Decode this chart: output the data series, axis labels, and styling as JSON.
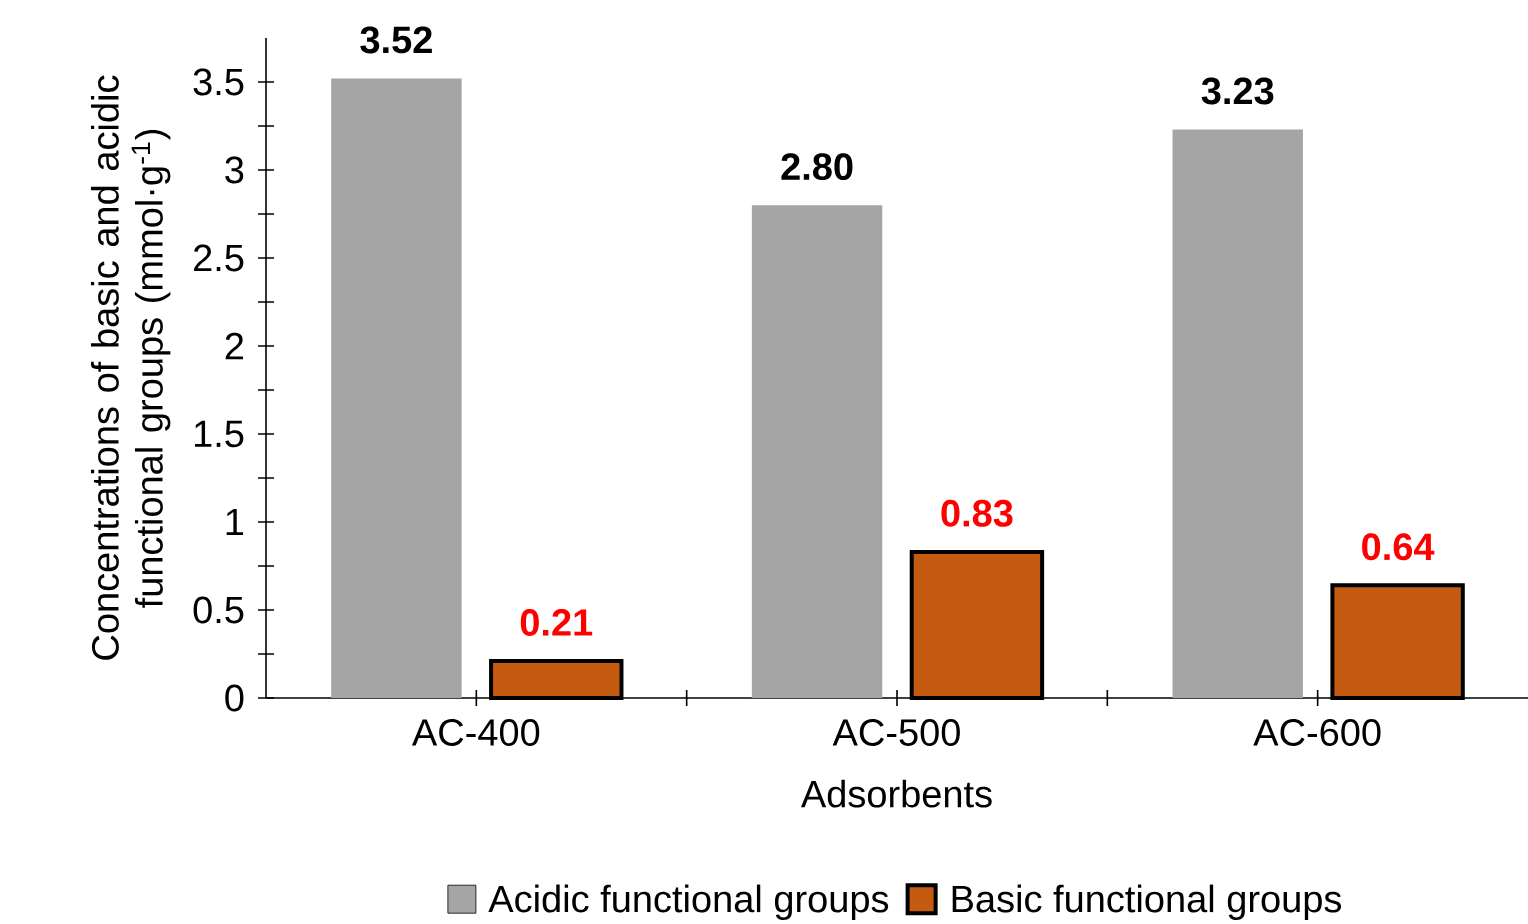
{
  "chart_data": {
    "type": "bar",
    "xlabel": "Adsorbents",
    "ylabel": "Concentrations of basic and acidic functional groups (mmol·g$^{-1}$)",
    "categories": [
      "AC-400",
      "AC-500",
      "AC-600"
    ],
    "series": [
      {
        "name": "Acidic functional groups",
        "color": "#a5a5a5",
        "values": [
          3.52,
          2.8,
          3.23
        ],
        "value_labels": [
          "3.52",
          "2.80",
          "3.23"
        ]
      },
      {
        "name": "Basic functional groups",
        "color": "#c55a11",
        "values": [
          0.21,
          0.83,
          0.64
        ],
        "value_labels": [
          "0.21",
          "0.83",
          "0.64"
        ]
      }
    ],
    "ylim": [
      0,
      3.75
    ],
    "yticks": [
      0,
      0.5,
      1,
      1.5,
      2,
      2.5,
      3,
      3.5
    ],
    "grid": false,
    "legend": "bottom"
  }
}
